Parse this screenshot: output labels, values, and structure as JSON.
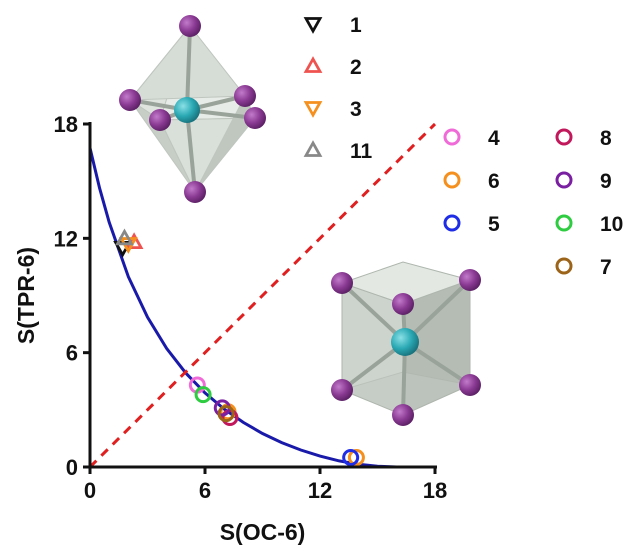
{
  "chart_data": {
    "type": "scatter",
    "xlabel": "S(OC-6)",
    "ylabel": "S(TPR-6)",
    "xlim": [
      0,
      18
    ],
    "ylim": [
      0,
      18
    ],
    "xticks": [
      0,
      6,
      12,
      18
    ],
    "yticks": [
      0,
      6,
      12,
      18
    ],
    "grid": false,
    "legend": "top-right",
    "series": [
      {
        "name": "1",
        "marker": "triangle-down",
        "color": "#111111",
        "points": [
          [
            1.7,
            11.5
          ]
        ]
      },
      {
        "name": "2",
        "marker": "triangle-up",
        "color": "#ef5350",
        "points": [
          [
            2.3,
            11.8
          ]
        ]
      },
      {
        "name": "3",
        "marker": "triangle-down",
        "color": "#f5901e",
        "points": [
          [
            2.0,
            11.7
          ]
        ]
      },
      {
        "name": "11",
        "marker": "triangle-up",
        "color": "#888888",
        "points": [
          [
            1.8,
            12.0
          ]
        ]
      },
      {
        "name": "4",
        "marker": "circle",
        "color": "#f06ad8",
        "points": [
          [
            5.6,
            4.3
          ]
        ]
      },
      {
        "name": "6",
        "marker": "circle",
        "color": "#f5901e",
        "points": [
          [
            7.2,
            2.9
          ],
          [
            13.9,
            0.5
          ]
        ]
      },
      {
        "name": "5",
        "marker": "circle",
        "color": "#1f2ee6",
        "points": [
          [
            13.6,
            0.5
          ]
        ]
      },
      {
        "name": "8",
        "marker": "circle",
        "color": "#c2185b",
        "points": [
          [
            7.3,
            2.6
          ]
        ]
      },
      {
        "name": "9",
        "marker": "circle",
        "color": "#7b1fa2",
        "points": [
          [
            6.9,
            3.1
          ]
        ]
      },
      {
        "name": "10",
        "marker": "circle",
        "color": "#2ecc40",
        "points": [
          [
            5.9,
            3.8
          ]
        ]
      },
      {
        "name": "7",
        "marker": "circle",
        "color": "#9c6419",
        "points": [
          [
            7.1,
            2.8
          ]
        ]
      }
    ],
    "curves": [
      {
        "kind": "minimal-distortion-path",
        "color": "#1a1aaa",
        "points": [
          [
            0.0,
            16.74
          ],
          [
            0.5,
            14.63
          ],
          [
            1.0,
            12.84
          ],
          [
            2.0,
            9.99
          ],
          [
            3.0,
            7.86
          ],
          [
            4.0,
            6.22
          ],
          [
            5.0,
            4.93
          ],
          [
            6.0,
            3.89
          ],
          [
            7.0,
            3.04
          ],
          [
            8.0,
            2.34
          ],
          [
            9.0,
            1.76
          ],
          [
            10.0,
            1.28
          ],
          [
            11.0,
            0.89
          ],
          [
            12.0,
            0.57
          ],
          [
            13.0,
            0.32
          ],
          [
            14.0,
            0.14
          ],
          [
            15.0,
            0.04
          ],
          [
            16.0,
            0.0
          ],
          [
            16.74,
            0.0
          ]
        ]
      },
      {
        "kind": "diagonal",
        "color": "#e02020",
        "dashed": true,
        "points": [
          [
            0,
            0
          ],
          [
            18,
            18
          ]
        ]
      }
    ],
    "legend_columns": [
      [
        "1",
        "2",
        "3",
        "11"
      ],
      [
        "4",
        "6",
        "5"
      ],
      [
        "8",
        "9",
        "10",
        "7"
      ]
    ]
  },
  "colors": {
    "atom_center": "#2aa9b4",
    "atom_vertex": "#8a3a93",
    "polyhedron_face": "#cfd6cf"
  }
}
